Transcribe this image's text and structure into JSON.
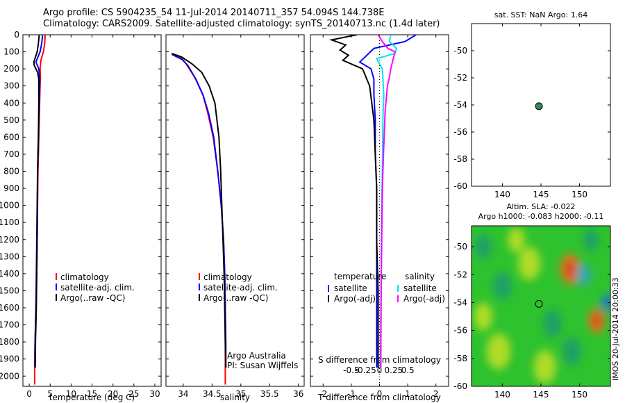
{
  "header": {
    "line1": "Argo profile: CS 5904235_54 11-Jul-2014 20140711_357 54.094S 144.738E",
    "line2": "Climatology: CARS2009. Satellite-adjusted climatology: synTS_20140713.nc (1.4d later)"
  },
  "side_label": "IMOS 20-Jul-2014 20:00:33",
  "colors": {
    "climatology": "#ff0000",
    "satellite": "#0000ff",
    "argo": "#000000",
    "s_satellite": "#00e5ee",
    "s_argo": "#ff00ff",
    "dot": "#2e8b57"
  },
  "chart_data": [
    {
      "type": "line",
      "panel": "temperature",
      "xlabel": "temperature (deg C)",
      "ylabel": "",
      "xlim": [
        -1.5,
        31.5
      ],
      "ylim": [
        2060,
        0
      ],
      "xticks": [
        0,
        5,
        10,
        15,
        20,
        25,
        30
      ],
      "yticks": [
        0,
        100,
        200,
        300,
        400,
        500,
        600,
        700,
        800,
        900,
        1000,
        1100,
        1200,
        1300,
        1400,
        1500,
        1600,
        1700,
        1800,
        1900,
        2000
      ],
      "legend": [
        "climatology",
        "satellite-adj. clim.",
        "Argo(..raw -QC)"
      ],
      "series": [
        {
          "name": "climatology",
          "color": "#ff0000",
          "x": [
            3.8,
            3.7,
            3.4,
            2.8,
            2.6,
            2.7,
            2.6,
            2.5,
            2.4,
            2.3,
            2.2,
            2.1,
            2.0,
            1.9,
            1.8,
            1.7,
            1.6,
            1.5,
            1.4,
            1.3,
            1.3
          ],
          "y": [
            0,
            50,
            100,
            150,
            200,
            250,
            300,
            400,
            500,
            600,
            700,
            800,
            1000,
            1200,
            1400,
            1500,
            1600,
            1700,
            1800,
            1900,
            2050
          ]
        },
        {
          "name": "satellite-adj. clim.",
          "color": "#0000ff",
          "x": [
            3.2,
            3.0,
            2.6,
            1.6,
            2.3,
            2.5,
            2.5,
            2.4,
            2.3,
            2.2,
            2.1,
            2.0,
            1.9,
            1.8,
            1.7,
            1.6,
            1.5,
            1.4,
            1.35
          ],
          "y": [
            0,
            50,
            100,
            160,
            200,
            250,
            300,
            400,
            500,
            600,
            700,
            800,
            1000,
            1200,
            1400,
            1600,
            1700,
            1800,
            1950
          ]
        },
        {
          "name": "Argo(..raw -QC)",
          "color": "#000000",
          "x": [
            2.4,
            2.2,
            1.9,
            1.1,
            1.2,
            2.0,
            2.3,
            2.3,
            2.25,
            2.2,
            2.1,
            2.0,
            1.95,
            1.9,
            1.8,
            1.7,
            1.6,
            1.5,
            1.45
          ],
          "y": [
            0,
            50,
            100,
            160,
            180,
            220,
            260,
            400,
            500,
            600,
            700,
            800,
            1000,
            1200,
            1400,
            1600,
            1700,
            1800,
            1950
          ]
        }
      ]
    },
    {
      "type": "line",
      "panel": "salinity",
      "xlabel": "salinity",
      "ylabel": "",
      "xlim": [
        33.7,
        36.1
      ],
      "ylim": [
        2060,
        0
      ],
      "xticks": [
        34,
        34.5,
        35,
        35.5,
        36
      ],
      "xtick_labels": [
        "34",
        "34.5",
        "35",
        "35.5",
        "36"
      ],
      "legend": [
        "climatology",
        "satellite-adj. clim.",
        "Argo(..raw -QC)"
      ],
      "annotation": [
        "Argo Australia",
        "PI: Susan Wijffels"
      ],
      "series": [
        {
          "name": "climatology",
          "color": "#ff0000",
          "x": [
            33.8,
            33.98,
            34.05,
            34.2,
            34.34,
            34.42,
            34.52,
            34.6,
            34.66,
            34.7,
            34.72,
            34.73,
            34.73,
            34.73
          ],
          "y": [
            110,
            140,
            170,
            250,
            350,
            450,
            600,
            800,
            1000,
            1200,
            1400,
            1600,
            1800,
            2050
          ]
        },
        {
          "name": "satellite-adj. clim.",
          "color": "#0000ff",
          "x": [
            33.8,
            33.98,
            34.08,
            34.22,
            34.35,
            34.44,
            34.53,
            34.6,
            34.66,
            34.7,
            34.72,
            34.73,
            34.74,
            34.74
          ],
          "y": [
            115,
            145,
            180,
            260,
            360,
            460,
            600,
            800,
            1000,
            1200,
            1400,
            1600,
            1800,
            1950
          ]
        },
        {
          "name": "Argo(..raw -QC)",
          "color": "#000000",
          "x": [
            33.8,
            33.97,
            34.15,
            34.32,
            34.45,
            34.55,
            34.62,
            34.65,
            34.67,
            34.69,
            34.71,
            34.72,
            34.73,
            34.74
          ],
          "y": [
            110,
            130,
            170,
            220,
            300,
            400,
            600,
            800,
            1000,
            1200,
            1400,
            1600,
            1800,
            1950
          ]
        }
      ]
    },
    {
      "type": "line",
      "panel": "differences",
      "xlabel": "T difference from climatology",
      "xlabel_top": "S difference from climatology",
      "xlim": [
        -2.45,
        2.45
      ],
      "ylim": [
        2060,
        0
      ],
      "xticks": [
        -2,
        -1,
        0,
        1,
        2
      ],
      "s_xticks": [
        -0.5,
        -0.25,
        0,
        0.25,
        0.5
      ],
      "s_xtick_labels": [
        "-0.5",
        "-0.25",
        "0",
        "0.25",
        "0.5"
      ],
      "s_scale": 2.0,
      "legend": {
        "temperature": {
          "heading": "temperature",
          "items": [
            "satellite",
            "Argo(-adj)"
          ]
        },
        "salinity": {
          "heading": "salinity",
          "items": [
            "satellite",
            "Argo(-adj)"
          ]
        }
      },
      "series": [
        {
          "name": "T satellite",
          "color": "#0000ff",
          "x": [
            1.3,
            0.9,
            -0.2,
            -0.7,
            -0.3,
            -0.2,
            -0.2,
            -0.15,
            -0.15,
            -0.1,
            -0.1,
            -0.1,
            -0.1,
            -0.1,
            -0.1
          ],
          "y": [
            0,
            40,
            80,
            160,
            200,
            260,
            350,
            500,
            700,
            900,
            1100,
            1400,
            1600,
            1800,
            1950
          ]
        },
        {
          "name": "T Argo(-adj)",
          "color": "#000000",
          "x": [
            -0.8,
            -1.7,
            -1.2,
            -1.4,
            -1.1,
            -1.3,
            -0.6,
            -0.35,
            -0.2,
            -0.15,
            -0.1,
            -0.1,
            -0.05,
            -0.05,
            -0.05
          ],
          "y": [
            0,
            30,
            60,
            90,
            120,
            150,
            200,
            300,
            500,
            700,
            900,
            1200,
            1500,
            1800,
            1950
          ]
        },
        {
          "name": "S satellite",
          "color": "#00e5ee",
          "x": [
            0.4,
            0.35,
            0.6,
            0.55,
            -0.1,
            0.1,
            0.15,
            0.12,
            0.1,
            0.08,
            0.06,
            0.05,
            0.04,
            0.03
          ],
          "y": [
            0,
            40,
            80,
            110,
            140,
            200,
            350,
            500,
            800,
            1000,
            1300,
            1600,
            1800,
            1950
          ]
        },
        {
          "name": "S Argo(-adj)",
          "color": "#ff00ff",
          "x": [
            -0.05,
            0.1,
            0.3,
            0.55,
            0.4,
            0.35,
            0.28,
            0.2,
            0.14,
            0.1,
            0.08,
            0.06,
            0.05,
            0.05
          ],
          "y": [
            0,
            40,
            80,
            100,
            200,
            250,
            300,
            450,
            700,
            900,
            1200,
            1500,
            1800,
            1950
          ]
        }
      ]
    },
    {
      "type": "scatter",
      "panel": "sst",
      "title": "sat. SST: NaN Argo: 1.64",
      "xlim": [
        136,
        154
      ],
      "ylim": [
        -60,
        -48
      ],
      "xticks": [
        140,
        145,
        150
      ],
      "yticks": [
        -50,
        -52,
        -54,
        -56,
        -58,
        -60
      ],
      "points": [
        {
          "x": 144.738,
          "y": -54.094
        }
      ]
    },
    {
      "type": "heatmap",
      "panel": "sla",
      "title_line1": "Altim. SLA: -0.022",
      "title_line2": "Argo h1000: -0.083 h2000: -0.11",
      "xlim": [
        136,
        154
      ],
      "ylim": [
        -60,
        -48.5
      ],
      "xticks": [
        140,
        145,
        150
      ],
      "yticks": [
        -50,
        -52,
        -54,
        -56,
        -58,
        -60
      ],
      "points": [
        {
          "x": 144.738,
          "y": -54.094
        }
      ],
      "blobs": [
        {
          "x": 148.8,
          "y": -51.6,
          "v": 1.0,
          "r": 1.1
        },
        {
          "x": 152.2,
          "y": -55.3,
          "v": 0.9,
          "r": 0.9
        },
        {
          "x": 153.6,
          "y": -54.0,
          "v": -1.4,
          "r": 0.6
        },
        {
          "x": 150.5,
          "y": -52.0,
          "v": -0.8,
          "r": 0.8
        },
        {
          "x": 143.5,
          "y": -51.2,
          "v": 0.5,
          "r": 1.2
        },
        {
          "x": 139.5,
          "y": -57.5,
          "v": 0.45,
          "r": 1.3
        },
        {
          "x": 140.0,
          "y": -52.8,
          "v": -0.4,
          "r": 1.0
        },
        {
          "x": 146.5,
          "y": -55.5,
          "v": -0.35,
          "r": 1.0
        },
        {
          "x": 137.5,
          "y": -50.0,
          "v": -0.35,
          "r": 0.9
        },
        {
          "x": 145.5,
          "y": -58.6,
          "v": 0.45,
          "r": 1.2
        },
        {
          "x": 149.0,
          "y": -57.5,
          "v": -0.3,
          "r": 1.0
        },
        {
          "x": 141.8,
          "y": -49.5,
          "v": 0.45,
          "r": 0.9
        },
        {
          "x": 151.5,
          "y": -49.5,
          "v": -0.45,
          "r": 0.8
        },
        {
          "x": 137.5,
          "y": -55.0,
          "v": 0.35,
          "r": 1.0
        }
      ]
    }
  ]
}
